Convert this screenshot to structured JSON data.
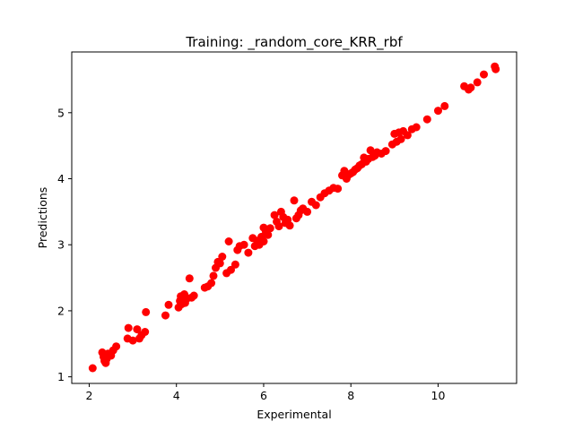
{
  "chart_data": {
    "type": "scatter",
    "title": "Training: _random_core_KRR_rbf",
    "xlabel": "Experimental",
    "ylabel": "Predictions",
    "xlim": [
      1.6,
      11.8
    ],
    "ylim": [
      0.9,
      5.92
    ],
    "xticks": [
      2,
      4,
      6,
      8,
      10
    ],
    "yticks": [
      1,
      2,
      3,
      4,
      5
    ],
    "grid": false,
    "legend": "none",
    "marker_color": "#ff0000",
    "series": [
      {
        "x": [
          2.08,
          2.3,
          2.33,
          2.35,
          2.38,
          2.4,
          2.43,
          2.5,
          2.55,
          2.62,
          2.88,
          2.9,
          3.0,
          3.1,
          3.15,
          3.2,
          3.28,
          3.3,
          3.75,
          3.82,
          4.05,
          4.08,
          4.1,
          4.12,
          4.15,
          4.18,
          4.2,
          4.25,
          4.3,
          4.35,
          4.4,
          4.65,
          4.72,
          4.8,
          4.85,
          4.9,
          4.95,
          5.0,
          5.05,
          5.15,
          5.2,
          5.25,
          5.35,
          5.4,
          5.45,
          5.55,
          5.65,
          5.75,
          5.8,
          5.85,
          5.9,
          5.95,
          6.0,
          6.0,
          6.05,
          6.1,
          6.15,
          6.25,
          6.3,
          6.35,
          6.4,
          6.45,
          6.5,
          6.55,
          6.6,
          6.7,
          6.75,
          6.8,
          6.85,
          6.9,
          7.0,
          7.1,
          7.2,
          7.3,
          7.4,
          7.5,
          7.6,
          7.7,
          7.8,
          7.85,
          7.9,
          7.95,
          8.0,
          8.05,
          8.1,
          8.15,
          8.2,
          8.25,
          8.3,
          8.35,
          8.4,
          8.45,
          8.5,
          8.55,
          8.6,
          8.7,
          8.8,
          8.95,
          9.0,
          9.05,
          9.1,
          9.15,
          9.2,
          9.3,
          9.4,
          9.5,
          9.75,
          10.0,
          10.15,
          10.6,
          10.7,
          10.75,
          10.9,
          11.05,
          11.3,
          11.32
        ],
        "y": [
          1.13,
          1.37,
          1.3,
          1.24,
          1.21,
          1.27,
          1.35,
          1.32,
          1.4,
          1.46,
          1.58,
          1.74,
          1.55,
          1.72,
          1.58,
          1.63,
          1.68,
          1.98,
          1.93,
          2.09,
          2.05,
          2.15,
          2.22,
          2.1,
          2.17,
          2.25,
          2.12,
          2.19,
          2.49,
          2.2,
          2.23,
          2.35,
          2.37,
          2.42,
          2.53,
          2.65,
          2.74,
          2.72,
          2.82,
          2.57,
          3.05,
          2.62,
          2.7,
          2.92,
          2.98,
          3.0,
          2.88,
          3.1,
          2.98,
          3.06,
          3.0,
          3.12,
          3.05,
          3.26,
          3.2,
          3.15,
          3.25,
          3.45,
          3.35,
          3.28,
          3.5,
          3.42,
          3.33,
          3.38,
          3.29,
          3.67,
          3.4,
          3.45,
          3.52,
          3.55,
          3.5,
          3.65,
          3.6,
          3.72,
          3.78,
          3.82,
          3.86,
          3.85,
          4.05,
          4.12,
          4.0,
          4.06,
          4.08,
          4.1,
          4.14,
          4.16,
          4.2,
          4.22,
          4.32,
          4.26,
          4.3,
          4.43,
          4.33,
          4.35,
          4.4,
          4.38,
          4.42,
          4.52,
          4.68,
          4.56,
          4.7,
          4.6,
          4.72,
          4.66,
          4.75,
          4.78,
          4.9,
          5.03,
          5.1,
          5.4,
          5.35,
          5.38,
          5.46,
          5.58,
          5.7,
          5.66
        ]
      }
    ]
  }
}
